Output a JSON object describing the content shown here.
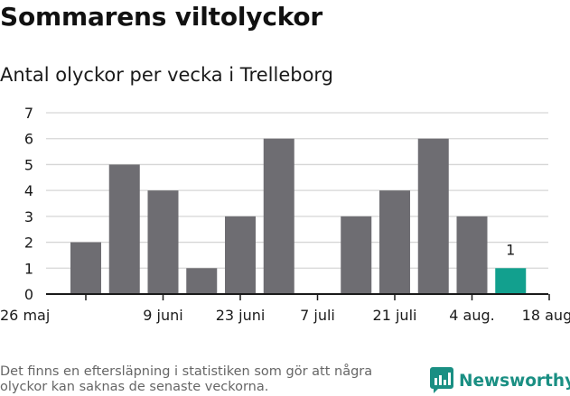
{
  "header": {
    "title": "Sommarens viltolyckor",
    "subtitle": "Antal olyckor per vecka i Trelleborg"
  },
  "chart_data": {
    "type": "bar",
    "title": "Sommarens viltolyckor",
    "subtitle": "Antal olyckor per vecka i Trelleborg",
    "xlabel": "",
    "ylabel": "",
    "categories": [
      "26 maj",
      "2 juni",
      "9 juni",
      "16 juni",
      "23 juni",
      "30 juni",
      "7 juli",
      "14 juli",
      "21 juli",
      "28 juli",
      "4 aug.",
      "11 aug.",
      "18 aug."
    ],
    "values": [
      2,
      5,
      4,
      1,
      3,
      6,
      null,
      3,
      4,
      6,
      3,
      1,
      null
    ],
    "x_tick_labels": [
      "26 maj",
      "9 juni",
      "23 juni",
      "7 juli",
      "21 juli",
      "4 aug.",
      "18 aug."
    ],
    "y_ticks": [
      0,
      1,
      2,
      3,
      4,
      5,
      6,
      7
    ],
    "ylim": [
      0,
      7
    ],
    "grid": true,
    "highlight": {
      "index": 11,
      "label": "1"
    },
    "colors": {
      "bar": "#6e6d72",
      "highlight": "#12a08e",
      "grid": "#d6d6d6",
      "axis": "#1a1a1a"
    }
  },
  "footer": {
    "note": "Det finns en eftersläpning i statistiken som gör att några olyckor kan saknas de senaste veckorna.",
    "brand": "Newsworthy",
    "brand_color": "#1a8f83",
    "brand_icon": "bar-chart-speech-bubble-icon"
  }
}
